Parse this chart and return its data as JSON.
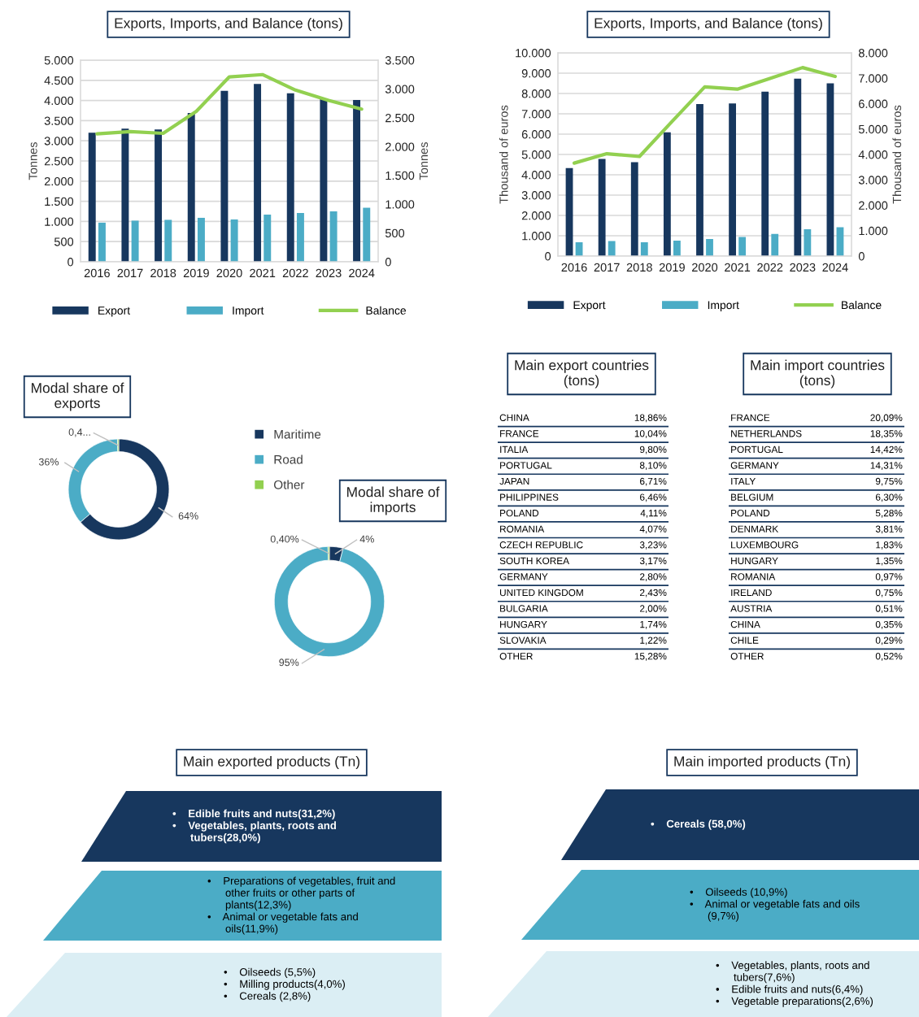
{
  "chart_data": [
    {
      "type": "bar",
      "title": "Exports, Imports, and Balance (tons)",
      "ylabel": "Tonnes",
      "y2label": "Tonnes",
      "x": [
        2016,
        2017,
        2018,
        2019,
        2020,
        2021,
        2022,
        2023,
        2024
      ],
      "xlim": [
        2015.5,
        2024.5
      ],
      "xticks": [
        2016,
        2017,
        2018,
        2019,
        2020,
        2021,
        2022,
        2023,
        2024
      ],
      "series": [
        {
          "name": "Export",
          "color": "#17375e",
          "values": [
            3200,
            3300,
            3280,
            3690,
            4240,
            4410,
            4180,
            4050,
            4010
          ]
        },
        {
          "name": "Import",
          "color": "#4bacc6",
          "values": [
            970,
            1020,
            1040,
            1090,
            1050,
            1170,
            1210,
            1250,
            1340
          ]
        },
        {
          "name": "Balance",
          "type": "line",
          "axis": "y2",
          "color": "#92d050",
          "values": [
            2220,
            2260,
            2230,
            2610,
            3210,
            3250,
            2980,
            2800,
            2650
          ]
        }
      ],
      "ylim": [
        0,
        5000
      ],
      "yticks": [
        0,
        500,
        {
          "value": 1000,
          "label": "1.000"
        },
        {
          "value": 1500,
          "label": "1.500"
        },
        {
          "value": 2000,
          "label": "2.000"
        },
        {
          "value": 2500,
          "label": "2.500"
        },
        {
          "value": 3000,
          "label": "3.000"
        },
        {
          "value": 3500,
          "label": "3.500"
        },
        {
          "value": 4000,
          "label": "4.000"
        },
        {
          "value": 4500,
          "label": "4.500"
        },
        {
          "value": 5000,
          "label": "5.000"
        }
      ],
      "y2lim": [
        0,
        3500
      ],
      "y2ticks": [
        0,
        500,
        {
          "value": 1000,
          "label": "1.000"
        },
        {
          "value": 1500,
          "label": "1.500"
        },
        {
          "value": 2000,
          "label": "2.000"
        },
        {
          "value": 2500,
          "label": "2.500"
        },
        {
          "value": 3000,
          "label": "3.000"
        },
        {
          "value": 3500,
          "label": "3.500"
        }
      ],
      "grid": "y",
      "legend": "bottom"
    },
    {
      "type": "bar",
      "title": "Exports, Imports, and Balance (tons)",
      "ylabel": "Thousand of euros",
      "y2label": "Thousand of euros",
      "x": [
        2016,
        2017,
        2018,
        2019,
        2020,
        2021,
        2022,
        2023,
        2024
      ],
      "xlim": [
        2015.5,
        2024.5
      ],
      "xticks": [
        2016,
        2017,
        2018,
        2019,
        2020,
        2021,
        2022,
        2023,
        2024
      ],
      "series": [
        {
          "name": "Export",
          "color": "#17375e",
          "values": [
            4330,
            4780,
            4620,
            6090,
            7480,
            7510,
            8090,
            8730,
            8500
          ]
        },
        {
          "name": "Import",
          "color": "#4bacc6",
          "values": [
            680,
            740,
            680,
            760,
            840,
            940,
            1090,
            1320,
            1420
          ]
        },
        {
          "name": "Balance",
          "type": "line",
          "axis": "y2",
          "color": "#92d050",
          "values": [
            3660,
            4030,
            3920,
            5300,
            6660,
            6570,
            6990,
            7420,
            7070
          ]
        }
      ],
      "ylim": [
        0,
        10000
      ],
      "yticks": [
        0,
        {
          "value": 1000,
          "label": "1.000"
        },
        {
          "value": 2000,
          "label": "2.000"
        },
        {
          "value": 3000,
          "label": "3.000"
        },
        {
          "value": 4000,
          "label": "4.000"
        },
        {
          "value": 5000,
          "label": "5.000"
        },
        {
          "value": 6000,
          "label": "6.000"
        },
        {
          "value": 7000,
          "label": "7.000"
        },
        {
          "value": 8000,
          "label": "8.000"
        },
        {
          "value": 9000,
          "label": "9.000"
        },
        {
          "value": 10000,
          "label": "10.000"
        }
      ],
      "y2lim": [
        0,
        8000
      ],
      "y2ticks": [
        0,
        {
          "value": 1000,
          "label": "1.000"
        },
        {
          "value": 2000,
          "label": "2.000"
        },
        {
          "value": 3000,
          "label": "3.000"
        },
        {
          "value": 4000,
          "label": "4.000"
        },
        {
          "value": 5000,
          "label": "5.000"
        },
        {
          "value": 6000,
          "label": "6.000"
        },
        {
          "value": 7000,
          "label": "7.000"
        },
        {
          "value": 8000,
          "label": "8.000"
        }
      ],
      "grid": "y",
      "legend": "bottom"
    },
    {
      "type": "donut",
      "title": "Modal share of\nexports",
      "categories": [
        "Maritime",
        "Road",
        "Other"
      ],
      "values": [
        64,
        36,
        0.4
      ],
      "colors": [
        "#17375e",
        "#4bacc6",
        "#92d050"
      ],
      "value_labels": [
        "64%",
        "36%",
        "0,4..."
      ],
      "legend": "right"
    },
    {
      "type": "donut",
      "title": "Modal share of\nimports",
      "categories": [
        null,
        null,
        null
      ],
      "values": [
        4,
        95,
        0.4
      ],
      "colors": [
        "#17375e",
        "#4bacc6",
        "#92d050"
      ],
      "value_labels": [
        "4%",
        "95%",
        "0,40%"
      ]
    },
    {
      "type": "other",
      "title": "Main export countries\n(tons)",
      "categories": [
        "CHINA",
        "FRANCE",
        "ITALIA",
        "PORTUGAL",
        "JAPAN",
        "PHILIPPINES",
        "POLAND",
        "ROMANIA",
        "CZECH REPUBLIC",
        "SOUTH KOREA",
        "GERMANY",
        "UNITED KINGDOM",
        "BULGARIA",
        "HUNGARY",
        "SLOVAKIA",
        "OTHER"
      ],
      "value_labels": [
        "18,86%",
        "10,04%",
        "9,80%",
        "8,10%",
        "6,71%",
        "6,46%",
        "4,11%",
        "4,07%",
        "3,23%",
        "3,17%",
        "2,80%",
        "2,43%",
        "2,00%",
        "1,74%",
        "1,22%",
        "15,28%"
      ]
    },
    {
      "type": "other",
      "title": "Main import countries\n(tons)",
      "categories": [
        "FRANCE",
        "NETHERLANDS",
        "PORTUGAL",
        "GERMANY",
        "ITALY",
        "BELGIUM",
        "POLAND",
        "DENMARK",
        "LUXEMBOURG",
        "HUNGARY",
        "ROMANIA",
        "IRELAND",
        "AUSTRIA",
        "CHINA",
        "CHILE",
        "OTHER"
      ],
      "value_labels": [
        "20,09%",
        "18,35%",
        "14,42%",
        "14,31%",
        "9,75%",
        "6,30%",
        "5,28%",
        "3,81%",
        "1,83%",
        "1,35%",
        "0,97%",
        "0,75%",
        "0,51%",
        "0,35%",
        "0,29%",
        "0,52%"
      ]
    },
    {
      "type": "other",
      "title": "Main exported products (Tn)",
      "colors": [
        "#17375e",
        "#4bacc6",
        "#dbeef4"
      ],
      "annotations": [
        "•    Edible fruits and nuts(31,2%)\n•    Vegetables, plants, roots and\n      tubers(28,0%)",
        "•    Preparations of vegetables, fruit and\n      other fruits or other parts of\n      plants(12,3%)\n•    Animal or vegetable fats and\n      oils(11,9%)",
        "•    Oilseeds (5,5%)\n•    Milling products(4,0%)\n•    Cereals (2,8%)"
      ]
    },
    {
      "type": "other",
      "title": "Main imported products (Tn)",
      "colors": [
        "#17375e",
        "#4bacc6",
        "#dbeef4"
      ],
      "annotations": [
        "•    Cereals (58,0%)",
        "•    Oilseeds (10,9%)\n•    Animal or vegetable fats and oils\n      (9,7%)",
        "•    Vegetables, plants, roots and\n      tubers(7,6%)\n•    Edible fruits and nuts(6,4%)\n•    Vegetable preparations(2,6%)"
      ]
    }
  ]
}
